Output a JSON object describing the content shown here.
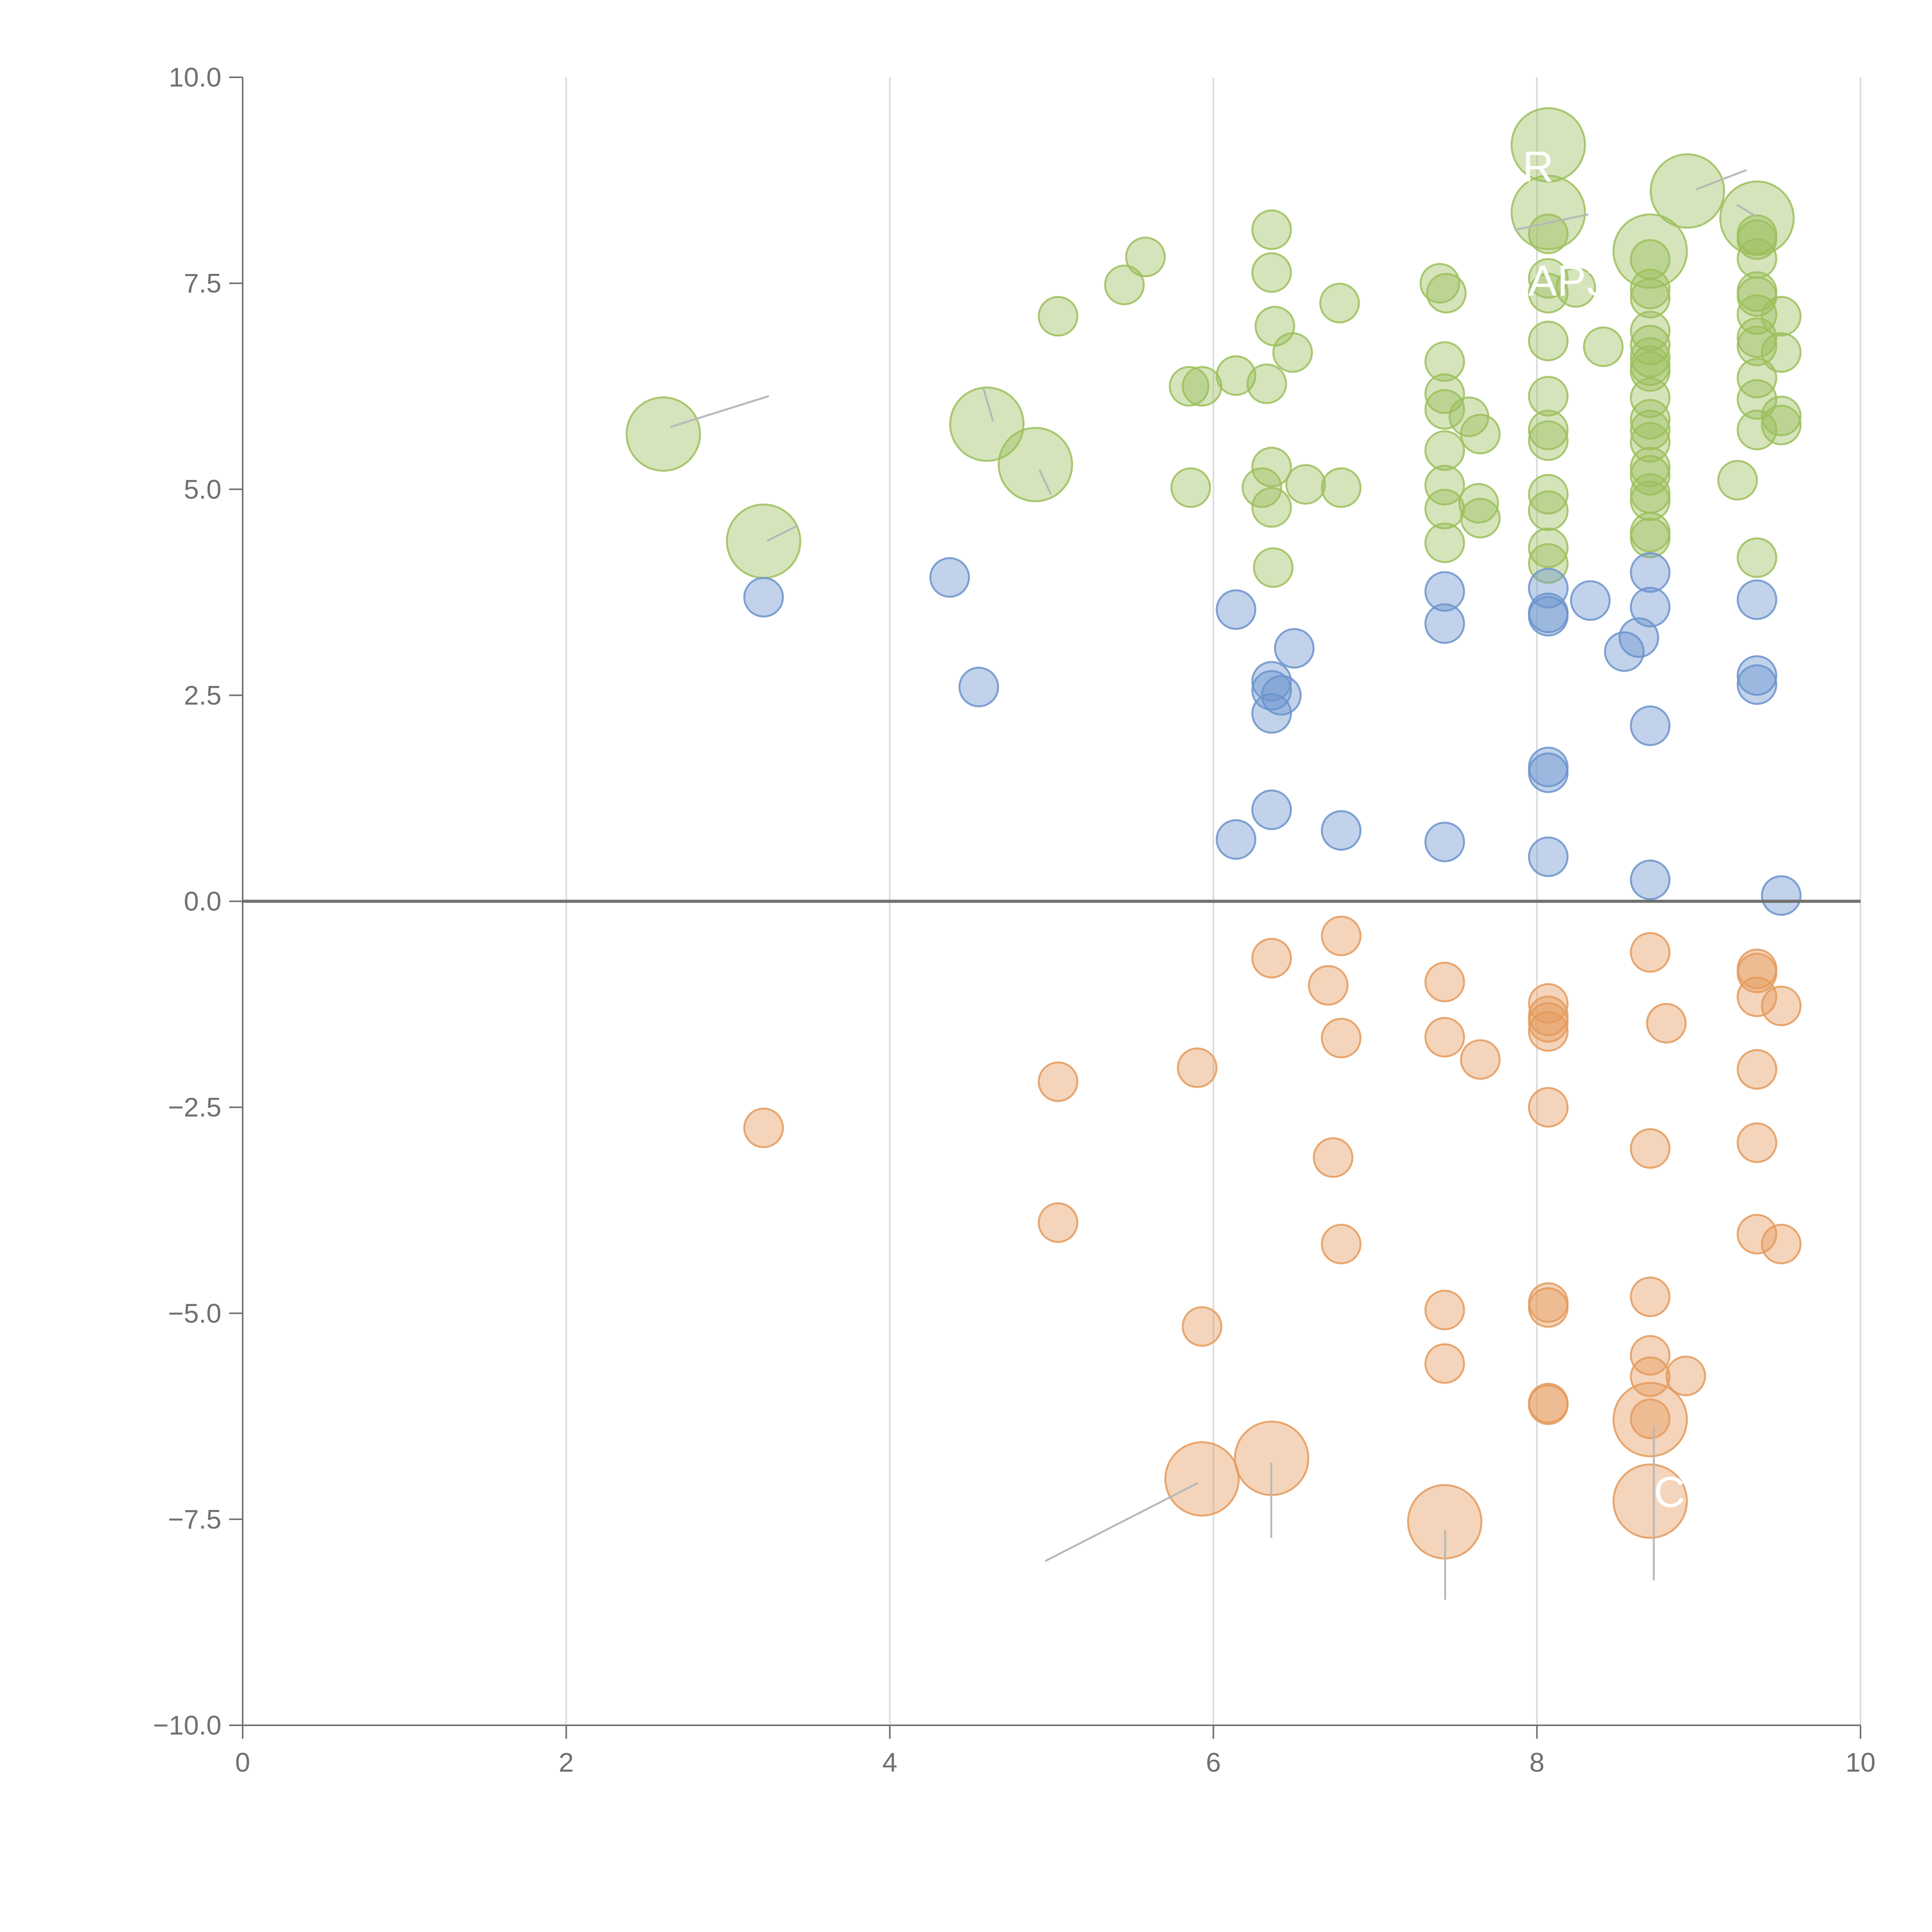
{
  "chart_data": {
    "type": "scatter",
    "title": "",
    "xlabel": "",
    "ylabel": "",
    "xlim": [
      0,
      10
    ],
    "ylim": [
      -10,
      10
    ],
    "x_ticks": [
      "0",
      "2",
      "4",
      "6",
      "8",
      "10"
    ],
    "y_ticks": [
      "10.0",
      "7.5",
      "5.0",
      "2.5",
      "0.0",
      "−2.5",
      "−5.0",
      "−7.5",
      "−10.0"
    ],
    "grid": "vertical",
    "zero_line": true,
    "colors": {
      "green": "#9cbf5c",
      "blue": "#6b93cc",
      "orange": "#e49a5c",
      "axis": "#707070",
      "grid": "#d9d9d9",
      "leader": "#b8b8b8"
    },
    "series": [
      {
        "color_key": "green",
        "points": [
          [
            6.36,
            8.15
          ],
          [
            6.36,
            7.63
          ],
          [
            5.58,
            7.82
          ],
          [
            5.45,
            7.48
          ],
          [
            5.04,
            7.1
          ],
          [
            6.38,
            6.98
          ],
          [
            6.49,
            6.66
          ],
          [
            6.78,
            7.26
          ],
          [
            6.14,
            6.38
          ],
          [
            5.85,
            6.25
          ],
          [
            5.93,
            6.25
          ],
          [
            6.33,
            6.28
          ],
          [
            5.86,
            5.02
          ],
          [
            6.36,
            5.27
          ],
          [
            6.3,
            5.02
          ],
          [
            6.36,
            4.78
          ],
          [
            6.57,
            5.06
          ],
          [
            6.79,
            5.02
          ],
          [
            6.37,
            4.05
          ],
          [
            7.4,
            7.5
          ],
          [
            7.44,
            7.38
          ],
          [
            7.43,
            6.55
          ],
          [
            7.43,
            6.16
          ],
          [
            7.43,
            5.97
          ],
          [
            7.43,
            5.47
          ],
          [
            7.43,
            5.05
          ],
          [
            7.43,
            4.76
          ],
          [
            7.43,
            4.35
          ],
          [
            7.58,
            5.88
          ],
          [
            7.65,
            5.67
          ],
          [
            7.64,
            4.83
          ],
          [
            7.65,
            4.65
          ],
          [
            8.07,
            8.1
          ],
          [
            8.07,
            7.56
          ],
          [
            8.07,
            7.38
          ],
          [
            8.07,
            6.8
          ],
          [
            8.07,
            6.13
          ],
          [
            8.07,
            5.72
          ],
          [
            8.07,
            5.59
          ],
          [
            8.07,
            4.94
          ],
          [
            8.07,
            4.74
          ],
          [
            8.07,
            4.29
          ],
          [
            8.07,
            4.1
          ],
          [
            8.24,
            7.45
          ],
          [
            8.41,
            6.73
          ],
          [
            8.7,
            7.79
          ],
          [
            8.7,
            7.43
          ],
          [
            8.7,
            7.32
          ],
          [
            8.7,
            6.92
          ],
          [
            8.7,
            6.75
          ],
          [
            8.7,
            6.6
          ],
          [
            8.7,
            6.5
          ],
          [
            8.7,
            6.43
          ],
          [
            8.7,
            6.11
          ],
          [
            8.7,
            5.85
          ],
          [
            8.7,
            5.72
          ],
          [
            8.7,
            5.57
          ],
          [
            8.7,
            5.27
          ],
          [
            8.7,
            5.17
          ],
          [
            8.7,
            4.95
          ],
          [
            8.7,
            4.86
          ],
          [
            8.7,
            4.48
          ],
          [
            8.7,
            4.41
          ],
          [
            9.36,
            8.09
          ],
          [
            9.36,
            8.03
          ],
          [
            9.36,
            7.8
          ],
          [
            9.36,
            7.4
          ],
          [
            9.36,
            7.34
          ],
          [
            9.36,
            7.12
          ],
          [
            9.36,
            6.84
          ],
          [
            9.36,
            6.74
          ],
          [
            9.36,
            6.35
          ],
          [
            9.36,
            6.09
          ],
          [
            9.36,
            5.72
          ],
          [
            9.36,
            4.17
          ],
          [
            9.51,
            7.1
          ],
          [
            9.51,
            6.66
          ],
          [
            9.51,
            5.89
          ],
          [
            9.51,
            5.78
          ],
          [
            9.24,
            5.11
          ]
        ]
      },
      {
        "color_key": "green",
        "large": true,
        "points": [
          [
            2.6,
            5.67
          ],
          [
            3.22,
            4.37
          ],
          [
            4.6,
            5.79
          ],
          [
            4.9,
            5.3
          ],
          [
            8.07,
            9.18
          ],
          [
            8.07,
            8.36
          ],
          [
            8.7,
            7.89
          ],
          [
            8.93,
            8.62
          ],
          [
            9.36,
            8.29
          ]
        ]
      },
      {
        "color_key": "blue",
        "points": [
          [
            3.22,
            3.69
          ],
          [
            4.37,
            3.93
          ],
          [
            4.55,
            2.6
          ],
          [
            6.14,
            3.54
          ],
          [
            6.36,
            2.67
          ],
          [
            6.36,
            2.56
          ],
          [
            6.42,
            2.5
          ],
          [
            6.36,
            2.28
          ],
          [
            6.5,
            3.07
          ],
          [
            6.36,
            1.11
          ],
          [
            6.14,
            0.75
          ],
          [
            6.79,
            0.86
          ],
          [
            7.43,
            3.76
          ],
          [
            7.43,
            3.37
          ],
          [
            7.43,
            0.72
          ],
          [
            8.07,
            3.8
          ],
          [
            8.07,
            3.5
          ],
          [
            8.07,
            3.46
          ],
          [
            8.33,
            3.65
          ],
          [
            8.07,
            1.63
          ],
          [
            8.07,
            1.56
          ],
          [
            8.07,
            0.54
          ],
          [
            8.54,
            3.03
          ],
          [
            8.63,
            3.2
          ],
          [
            8.7,
            3.99
          ],
          [
            8.7,
            3.57
          ],
          [
            8.7,
            2.13
          ],
          [
            8.7,
            0.26
          ],
          [
            9.36,
            3.66
          ],
          [
            9.36,
            2.74
          ],
          [
            9.36,
            2.63
          ],
          [
            9.51,
            0.07
          ]
        ]
      },
      {
        "color_key": "orange",
        "points": [
          [
            3.22,
            -2.75
          ],
          [
            5.04,
            -2.19
          ],
          [
            5.04,
            -3.9
          ],
          [
            5.9,
            -2.02
          ],
          [
            5.93,
            -5.16
          ],
          [
            6.36,
            -0.69
          ],
          [
            6.71,
            -1.02
          ],
          [
            6.79,
            -0.42
          ],
          [
            6.79,
            -1.66
          ],
          [
            6.74,
            -3.11
          ],
          [
            6.79,
            -4.16
          ],
          [
            7.43,
            -0.98
          ],
          [
            7.43,
            -1.65
          ],
          [
            7.65,
            -1.92
          ],
          [
            7.43,
            -4.96
          ],
          [
            7.43,
            -5.61
          ],
          [
            8.07,
            -1.24
          ],
          [
            8.07,
            -1.39
          ],
          [
            8.07,
            -1.47
          ],
          [
            8.07,
            -1.58
          ],
          [
            8.07,
            -2.5
          ],
          [
            8.07,
            -4.87
          ],
          [
            8.07,
            -4.93
          ],
          [
            8.07,
            -6.09
          ],
          [
            8.07,
            -6.11
          ],
          [
            8.7,
            -0.62
          ],
          [
            8.8,
            -1.48
          ],
          [
            8.7,
            -3.0
          ],
          [
            8.7,
            -4.8
          ],
          [
            8.7,
            -5.51
          ],
          [
            8.7,
            -5.77
          ],
          [
            8.7,
            -6.28
          ],
          [
            8.92,
            -5.76
          ],
          [
            9.36,
            -0.82
          ],
          [
            9.36,
            -0.87
          ],
          [
            9.36,
            -1.16
          ],
          [
            9.51,
            -1.27
          ],
          [
            9.36,
            -2.04
          ],
          [
            9.36,
            -2.93
          ],
          [
            9.36,
            -4.04
          ],
          [
            9.51,
            -4.16
          ]
        ]
      },
      {
        "color_key": "orange",
        "large": true,
        "points": [
          [
            5.93,
            -7.01
          ],
          [
            6.36,
            -6.76
          ],
          [
            7.43,
            -7.53
          ],
          [
            8.7,
            -6.29
          ],
          [
            8.7,
            -7.28
          ]
        ]
      }
    ],
    "annotations": [
      "R",
      "AP3",
      "C"
    ]
  }
}
